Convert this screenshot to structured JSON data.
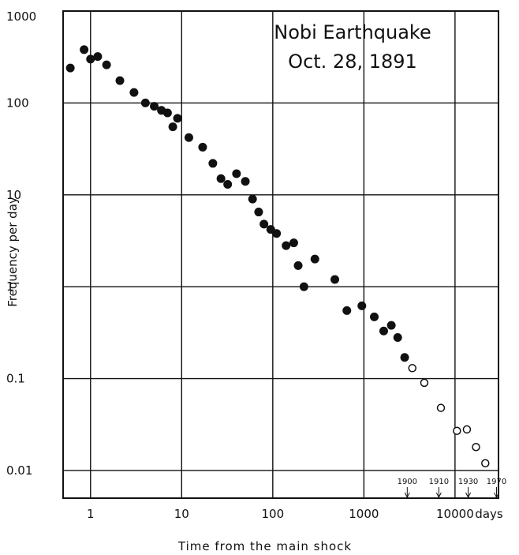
{
  "chart_data": {
    "type": "scatter",
    "title": "Nobi Earthquake",
    "subtitle": "Oct. 28, 1891",
    "xlabel": "Time from the main shock",
    "x_unit_label": "days",
    "ylabel": "Frequency per day",
    "x_scale": "log",
    "y_scale": "log",
    "xlim": [
      0.5,
      30000
    ],
    "ylim": [
      0.005,
      1000
    ],
    "grid": true,
    "x_ticks": [
      {
        "value": 1,
        "label": "1"
      },
      {
        "value": 10,
        "label": "10"
      },
      {
        "value": 100,
        "label": "100"
      },
      {
        "value": 1000,
        "label": "1000"
      },
      {
        "value": 10000,
        "label": "10000"
      }
    ],
    "y_ticks": [
      {
        "value": 1000,
        "label": "1000"
      },
      {
        "value": 100,
        "label": "100"
      },
      {
        "value": 10,
        "label": "10"
      },
      {
        "value": 1,
        "label": "1"
      },
      {
        "value": 0.1,
        "label": "0.1"
      },
      {
        "value": 0.01,
        "label": "0.01"
      }
    ],
    "annotations": [
      {
        "text": "1900",
        "x": 2990
      },
      {
        "text": "1910",
        "x": 6640
      },
      {
        "text": "1930",
        "x": 13950
      },
      {
        "text": "1970",
        "x": 28560
      }
    ],
    "series": [
      {
        "marker": "filled",
        "points": [
          {
            "x": 0.6,
            "y": 240
          },
          {
            "x": 0.85,
            "y": 380
          },
          {
            "x": 1.0,
            "y": 300
          },
          {
            "x": 1.2,
            "y": 320
          },
          {
            "x": 1.5,
            "y": 260
          },
          {
            "x": 2.1,
            "y": 175
          },
          {
            "x": 3.0,
            "y": 130
          },
          {
            "x": 4.0,
            "y": 100
          },
          {
            "x": 5.0,
            "y": 92
          },
          {
            "x": 6.0,
            "y": 83
          },
          {
            "x": 7.0,
            "y": 78
          },
          {
            "x": 8.0,
            "y": 55
          },
          {
            "x": 9.0,
            "y": 68
          },
          {
            "x": 12,
            "y": 42
          },
          {
            "x": 17,
            "y": 33
          },
          {
            "x": 22,
            "y": 22
          },
          {
            "x": 27,
            "y": 15
          },
          {
            "x": 32,
            "y": 13
          },
          {
            "x": 40,
            "y": 17
          },
          {
            "x": 50,
            "y": 14
          },
          {
            "x": 60,
            "y": 9
          },
          {
            "x": 70,
            "y": 6.5
          },
          {
            "x": 80,
            "y": 4.8
          },
          {
            "x": 95,
            "y": 4.2
          },
          {
            "x": 110,
            "y": 3.8
          },
          {
            "x": 140,
            "y": 2.8
          },
          {
            "x": 170,
            "y": 3.0
          },
          {
            "x": 190,
            "y": 1.7
          },
          {
            "x": 220,
            "y": 1.0
          },
          {
            "x": 290,
            "y": 2.0
          },
          {
            "x": 480,
            "y": 1.2
          },
          {
            "x": 650,
            "y": 0.55
          },
          {
            "x": 950,
            "y": 0.62
          },
          {
            "x": 1300,
            "y": 0.47
          },
          {
            "x": 1650,
            "y": 0.33
          },
          {
            "x": 2000,
            "y": 0.38
          },
          {
            "x": 2350,
            "y": 0.28
          },
          {
            "x": 2800,
            "y": 0.17
          }
        ]
      },
      {
        "marker": "open",
        "points": [
          {
            "x": 3400,
            "y": 0.13
          },
          {
            "x": 4600,
            "y": 0.09
          },
          {
            "x": 7000,
            "y": 0.048
          },
          {
            "x": 10500,
            "y": 0.027
          },
          {
            "x": 13500,
            "y": 0.028
          },
          {
            "x": 17000,
            "y": 0.018
          },
          {
            "x": 21500,
            "y": 0.012
          }
        ]
      }
    ]
  }
}
